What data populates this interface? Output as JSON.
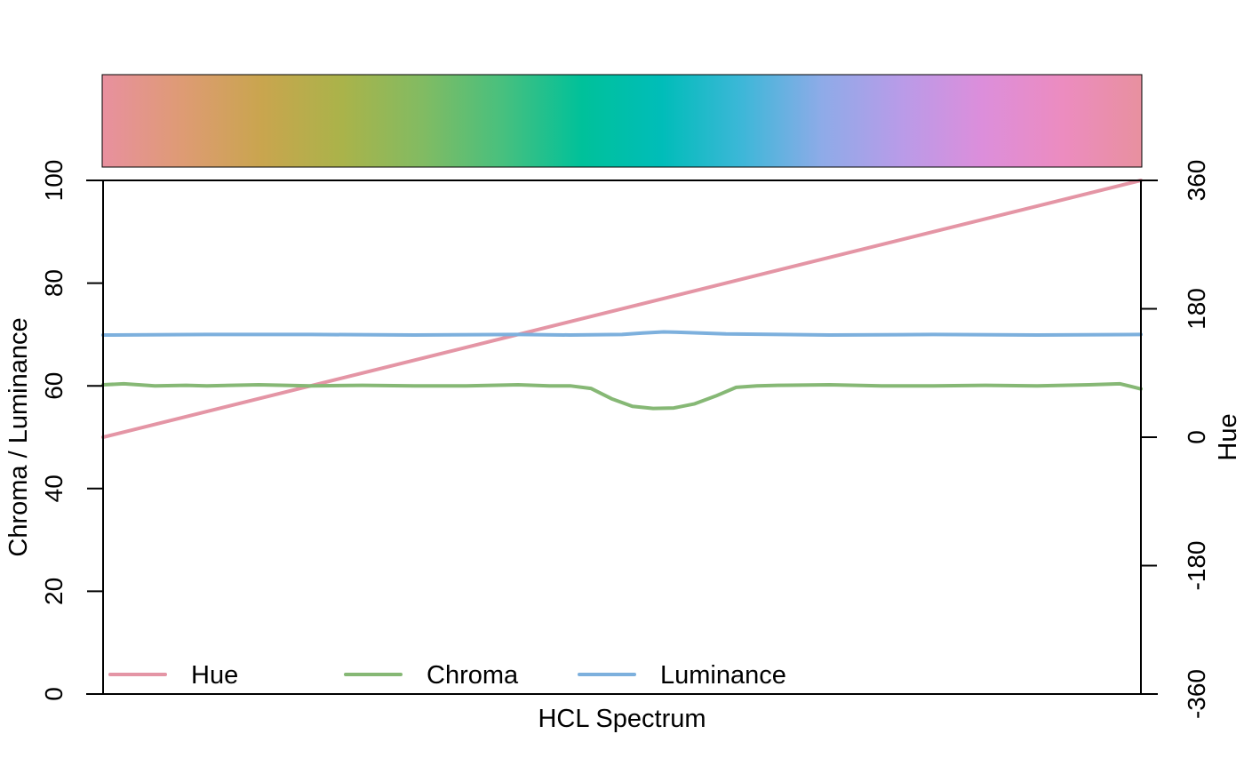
{
  "chart_data": {
    "type": "line",
    "title": "",
    "xlabel": "HCL Spectrum",
    "ylabel_left": "Chroma / Luminance",
    "ylabel_right": "Hue",
    "xlim": [
      0,
      1
    ],
    "ylim_left": [
      0,
      100
    ],
    "ylim_right": [
      -360,
      360
    ],
    "yticks_left": [
      0,
      20,
      40,
      60,
      80,
      100
    ],
    "yticks_right": [
      -360,
      -180,
      0,
      180,
      360
    ],
    "grid": false,
    "legend_position": "bottom-left",
    "legend": [
      {
        "label": "Hue",
        "color": "#E495A5"
      },
      {
        "label": "Chroma",
        "color": "#86B875"
      },
      {
        "label": "Luminance",
        "color": "#7DB0DD"
      }
    ],
    "spectrum_stops": [
      "#E8909F",
      "#DE9B74",
      "#C9A54E",
      "#AAB34A",
      "#82BB62",
      "#48C07E",
      "#00C19A",
      "#00BDB9",
      "#3DB7D8",
      "#8EABE8",
      "#B99BE8",
      "#DC8EDB",
      "#EC8CC0",
      "#E8909F"
    ],
    "series": [
      {
        "name": "Hue",
        "axis": "right",
        "color": "#E495A5",
        "x": [
          0,
          1
        ],
        "values": [
          0,
          360
        ]
      },
      {
        "name": "Chroma",
        "axis": "left",
        "color": "#86B875",
        "x": [
          0,
          0.02,
          0.05,
          0.08,
          0.1,
          0.15,
          0.2,
          0.25,
          0.3,
          0.35,
          0.4,
          0.43,
          0.45,
          0.47,
          0.49,
          0.51,
          0.53,
          0.55,
          0.57,
          0.59,
          0.61,
          0.63,
          0.65,
          0.7,
          0.75,
          0.8,
          0.85,
          0.9,
          0.95,
          0.98,
          1
        ],
        "values": [
          60.2,
          60.4,
          60.0,
          60.1,
          60.0,
          60.2,
          60.0,
          60.1,
          60.0,
          60.0,
          60.2,
          60.0,
          60.0,
          59.5,
          57.5,
          56.0,
          55.6,
          55.7,
          56.5,
          58.0,
          59.7,
          60.0,
          60.1,
          60.2,
          60.0,
          60.0,
          60.1,
          60.0,
          60.2,
          60.4,
          59.4
        ]
      },
      {
        "name": "Luminance",
        "axis": "left",
        "color": "#7DB0DD",
        "x": [
          0,
          0.1,
          0.2,
          0.3,
          0.4,
          0.45,
          0.5,
          0.52,
          0.54,
          0.56,
          0.6,
          0.7,
          0.8,
          0.9,
          1
        ],
        "values": [
          69.9,
          70.0,
          70.0,
          69.9,
          70.0,
          69.9,
          70.0,
          70.3,
          70.5,
          70.4,
          70.1,
          69.9,
          70.0,
          69.9,
          70.0
        ]
      }
    ]
  }
}
